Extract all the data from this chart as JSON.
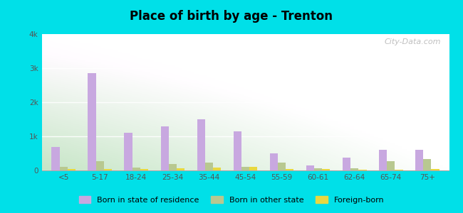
{
  "title": "Place of birth by age - Trenton",
  "categories": [
    "<5",
    "5-17",
    "18-24",
    "25-34",
    "35-44",
    "45-54",
    "55-59",
    "60-61",
    "62-64",
    "65-74",
    "75+"
  ],
  "born_in_state": [
    680,
    2850,
    1100,
    1300,
    1500,
    1150,
    500,
    150,
    380,
    600,
    600
  ],
  "born_other_state": [
    100,
    280,
    80,
    180,
    230,
    110,
    220,
    60,
    60,
    280,
    340
  ],
  "foreign_born": [
    50,
    50,
    40,
    70,
    80,
    100,
    40,
    40,
    30,
    30,
    40
  ],
  "color_state": "#c8a8e0",
  "color_other": "#b8c890",
  "color_foreign": "#e8d840",
  "ylim": [
    0,
    4000
  ],
  "yticks": [
    0,
    1000,
    2000,
    3000,
    4000
  ],
  "ytick_labels": [
    "0",
    "1k",
    "2k",
    "3k",
    "4k"
  ],
  "outer_bg": "#00e0e8",
  "watermark": "City-Data.com",
  "bg_colors": [
    "#c8e8c0",
    "#e8f8e8",
    "#f4fcf4",
    "#ffffff"
  ],
  "legend_labels": [
    "Born in state of residence",
    "Born in other state",
    "Foreign-born"
  ]
}
